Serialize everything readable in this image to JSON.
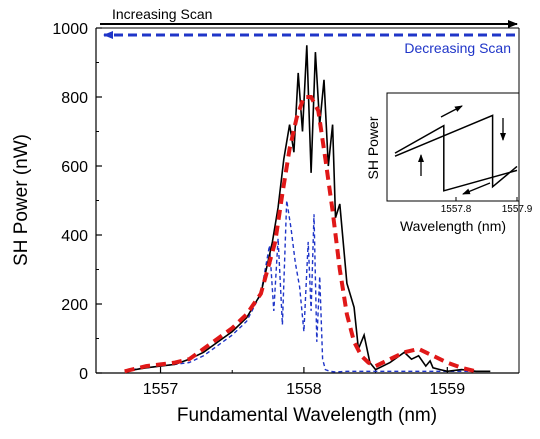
{
  "chart_data": [
    {
      "type": "line",
      "xlabel": "Fundamental Wavelength (nm)",
      "ylabel": "SH Power (nW)",
      "xlim": [
        1556.55,
        1559.5
      ],
      "ylim": [
        0,
        1000
      ],
      "x_ticks": [
        "1557",
        "1558",
        "1559"
      ],
      "y_ticks": [
        "0",
        "200",
        "400",
        "600",
        "800",
        "1000"
      ],
      "grid": false,
      "annotations": [
        {
          "text": "Increasing Scan",
          "color": "#000000",
          "arrow": "right"
        },
        {
          "text": "Decreasing Scan",
          "color": "#1f35c8",
          "arrow": "left"
        }
      ],
      "series": [
        {
          "name": "Increasing Scan",
          "style": "solid",
          "color": "#000000",
          "x": [
            1556.75,
            1556.9,
            1557.0,
            1557.1,
            1557.2,
            1557.3,
            1557.4,
            1557.5,
            1557.6,
            1557.7,
            1557.78,
            1557.82,
            1557.86,
            1557.9,
            1557.93,
            1557.96,
            1557.99,
            1558.02,
            1558.05,
            1558.08,
            1558.11,
            1558.14,
            1558.17,
            1558.2,
            1558.22,
            1558.25,
            1558.3,
            1558.35,
            1558.38,
            1558.42,
            1558.46,
            1558.5,
            1558.6,
            1558.7,
            1558.75,
            1558.8,
            1558.85,
            1558.88,
            1558.9,
            1558.95,
            1559.0,
            1559.1,
            1559.2,
            1559.3
          ],
          "y": [
            5,
            15,
            20,
            25,
            40,
            60,
            90,
            120,
            160,
            230,
            380,
            480,
            620,
            720,
            640,
            870,
            700,
            950,
            580,
            930,
            720,
            850,
            600,
            720,
            450,
            490,
            260,
            190,
            70,
            110,
            30,
            10,
            30,
            60,
            40,
            50,
            20,
            35,
            15,
            10,
            5,
            10,
            5,
            5
          ]
        },
        {
          "name": "Decreasing Scan",
          "style": "dashed",
          "color": "#1f35c8",
          "x": [
            1556.8,
            1556.9,
            1557.0,
            1557.1,
            1557.2,
            1557.3,
            1557.4,
            1557.5,
            1557.6,
            1557.7,
            1557.76,
            1557.79,
            1557.82,
            1557.85,
            1557.88,
            1557.91,
            1557.94,
            1557.97,
            1558.0,
            1558.03,
            1558.05,
            1558.07,
            1558.09,
            1558.11,
            1558.13,
            1558.15,
            1558.18,
            1558.22,
            1558.3,
            1558.4,
            1558.5,
            1558.6,
            1558.7,
            1558.8,
            1558.9,
            1559.0,
            1559.1,
            1559.2
          ],
          "y": [
            10,
            15,
            20,
            25,
            30,
            50,
            80,
            110,
            150,
            230,
            370,
            180,
            390,
            140,
            500,
            420,
            320,
            250,
            120,
            380,
            180,
            460,
            90,
            280,
            40,
            10,
            5,
            3,
            5,
            5,
            5,
            5,
            5,
            5,
            5,
            5,
            5,
            5
          ]
        },
        {
          "name": "",
          "style": "bold-dashed",
          "color": "#e01818",
          "x": [
            1556.75,
            1556.9,
            1557.0,
            1557.1,
            1557.2,
            1557.3,
            1557.4,
            1557.5,
            1557.6,
            1557.7,
            1557.8,
            1557.85,
            1557.9,
            1557.95,
            1558.0,
            1558.05,
            1558.1,
            1558.15,
            1558.2,
            1558.25,
            1558.3,
            1558.35,
            1558.4,
            1558.45,
            1558.5,
            1558.6,
            1558.7,
            1558.8,
            1558.9,
            1559.0,
            1559.1,
            1559.2
          ],
          "y": [
            5,
            20,
            25,
            30,
            40,
            70,
            100,
            130,
            170,
            230,
            380,
            520,
            650,
            740,
            800,
            800,
            760,
            620,
            470,
            300,
            170,
            90,
            50,
            30,
            20,
            40,
            60,
            70,
            50,
            30,
            15,
            5
          ]
        }
      ]
    },
    {
      "type": "line",
      "inset": true,
      "xlabel": "Wavelength (nm)",
      "ylabel": "SH Power",
      "xlim": [
        1557.7,
        1557.9
      ],
      "ylim": [
        0,
        1
      ],
      "x_ticks": [
        "1557.8",
        "1557.9"
      ],
      "series": [
        {
          "name": "",
          "x": [
            1557.7,
            1557.86,
            1557.86,
            1557.9
          ],
          "y": [
            0.42,
            0.82,
            0.12,
            0.32
          ]
        },
        {
          "name": "",
          "x": [
            1557.9,
            1557.78,
            1557.78,
            1557.7
          ],
          "y": [
            0.28,
            0.08,
            0.72,
            0.45
          ]
        }
      ]
    }
  ]
}
